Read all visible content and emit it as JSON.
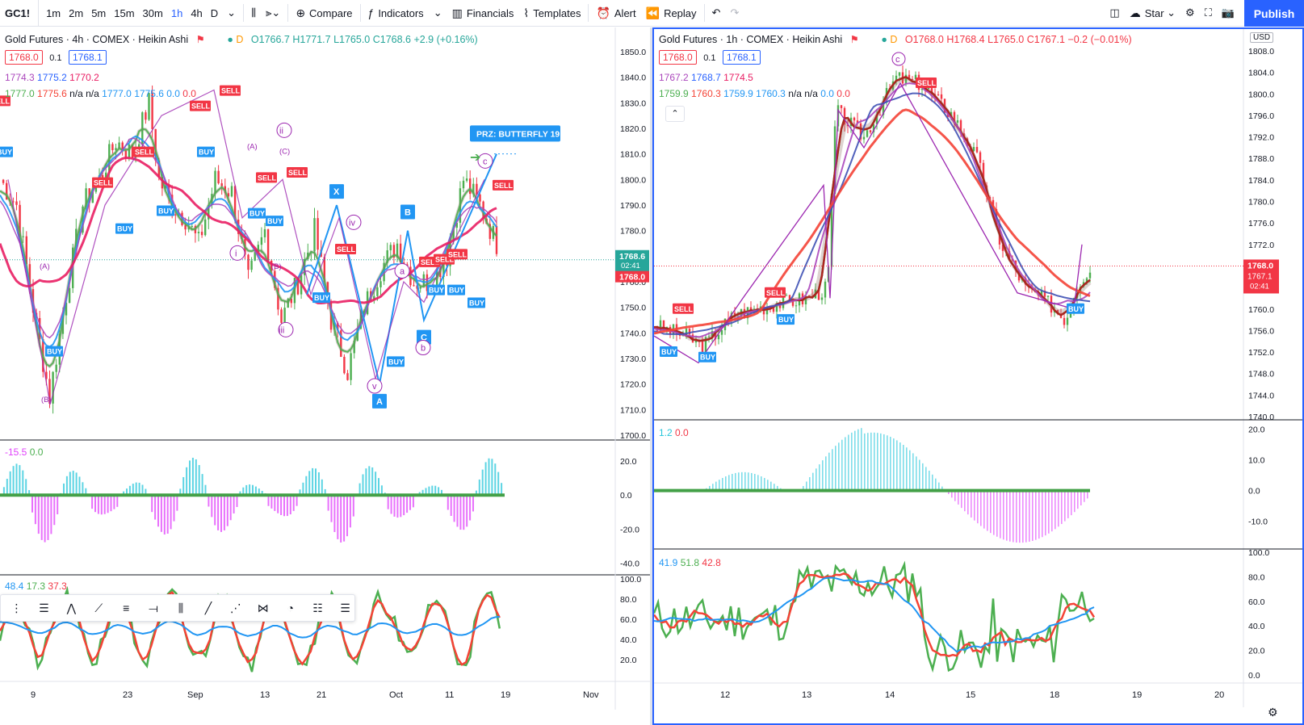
{
  "toolbar": {
    "symbol": "GC1!",
    "intervals": [
      "1m",
      "2m",
      "5m",
      "15m",
      "30m",
      "1h",
      "4h",
      "D"
    ],
    "active_interval": "1h",
    "compare": "Compare",
    "indicators": "Indicators",
    "financials": "Financials",
    "templates": "Templates",
    "alert": "Alert",
    "replay": "Replay",
    "layout": "Star",
    "publish": "Publish"
  },
  "left": {
    "title": "Gold Futures · 4h · COMEX · Heikin Ashi",
    "ohlc": "O1766.7  H1771.7  L1765.0  C1768.6  +2.9 (+0.16%)",
    "bid": "1768.0",
    "step": "0.1",
    "ask": "1768.1",
    "ma_line1": [
      "1774.3",
      "1775.2",
      "1770.2"
    ],
    "ma_line2": [
      "1777.0",
      "1775.6",
      "n/a",
      "n/a",
      "1777.0",
      "1775.6",
      "0.0",
      "0.0"
    ],
    "price_ticks": [
      "1850.0",
      "1840.0",
      "1830.0",
      "1820.0",
      "1810.0",
      "1800.0",
      "1790.0",
      "1780.0",
      "1770.0",
      "1760.0",
      "1750.0",
      "1740.0",
      "1730.0",
      "1720.0",
      "1710.0",
      "1700.0"
    ],
    "last_price": "1768.6",
    "countdown": "02:41",
    "current_price": "1768.0",
    "osc_legend": [
      "-15.5",
      "0.0"
    ],
    "osc_ticks": [
      "20.0",
      "0.0",
      "-20.0",
      "-40.0"
    ],
    "rsi_legend": [
      "48.4",
      "17.3",
      "37.3"
    ],
    "rsi_ticks": [
      "100.0",
      "80.0",
      "60.0",
      "40.0",
      "20.0"
    ],
    "time_ticks": [
      "9",
      "23",
      "Sep",
      "13",
      "21",
      "Oct",
      "11",
      "19",
      "Nov"
    ],
    "prz_label": "PRZ: BUTTERFLY 19",
    "wave_labels": [
      "(A)",
      "(B)",
      "(C)",
      "i",
      "ii",
      "iii",
      "iv",
      "v",
      "a",
      "b",
      "c"
    ],
    "pattern_points": [
      "X",
      "A",
      "B",
      "C"
    ],
    "signals": [
      "SELL",
      "BUY"
    ]
  },
  "right": {
    "title": "Gold Futures · 1h · COMEX · Heikin Ashi",
    "ohlc": "O1768.0  H1768.4  L1765.0  C1767.1  −0.2 (−0.01%)",
    "bid": "1768.0",
    "step": "0.1",
    "ask": "1768.1",
    "ma_line1": [
      "1767.2",
      "1768.7",
      "1774.5"
    ],
    "ma_line2": [
      "1759.9",
      "1760.3",
      "1759.9",
      "1760.3",
      "n/a",
      "n/a",
      "0.0",
      "0.0"
    ],
    "currency": "USD",
    "price_ticks": [
      "1808.0",
      "1804.0",
      "1800.0",
      "1796.0",
      "1792.0",
      "1788.0",
      "1784.0",
      "1780.0",
      "1776.0",
      "1772.0",
      "1768.0",
      "1764.0",
      "1760.0",
      "1756.0",
      "1752.0",
      "1748.0",
      "1744.0",
      "1740.0"
    ],
    "current_price": "1768.0",
    "last_price": "1767.1",
    "countdown": "02:41",
    "osc_legend": [
      "1.2",
      "0.0"
    ],
    "osc_ticks": [
      "20.0",
      "10.0",
      "0.0",
      "-10.0"
    ],
    "rsi_legend": [
      "41.9",
      "51.8",
      "42.8"
    ],
    "rsi_ticks": [
      "100.0",
      "80.0",
      "60.0",
      "40.0",
      "20.0",
      "0.0"
    ],
    "time_ticks": [
      "12",
      "13",
      "14",
      "15",
      "18",
      "19",
      "20"
    ],
    "wave_label": "c",
    "signals": [
      "SELL",
      "BUY"
    ]
  },
  "colors": {
    "accent": "#2962ff",
    "sell": "#f23645",
    "buy": "#2196f3",
    "wave": "#9c27b0",
    "ma_red": "#f44336",
    "ma_pink": "#e91e63",
    "ma_blue": "#2962ff",
    "ma_purple": "#ab47bc",
    "ma_green": "#4caf50",
    "osc_up": "#26c6da",
    "osc_down": "#e040fb"
  }
}
